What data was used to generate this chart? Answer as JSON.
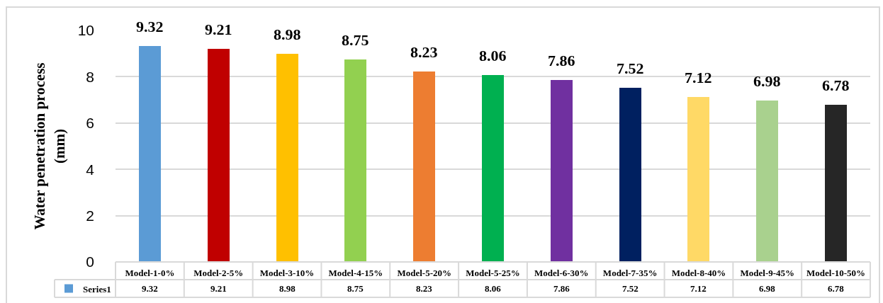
{
  "chart_data": {
    "type": "bar",
    "ylabel": "Water penetration process (mm)",
    "categories": [
      "Model-1-0%",
      "Model-2-5%",
      "Model-3-10%",
      "Model-4-15%",
      "Model-5-20%",
      "Model-5-25%",
      "Model-6-30%",
      "Model-7-35%",
      "Model-8-40%",
      "Model-9-45%",
      "Model-10-50%"
    ],
    "series": [
      {
        "name": "Series1",
        "colors": [
          "#5b9bd5",
          "#c00000",
          "#ffc000",
          "#92d050",
          "#ed7d31",
          "#00b050",
          "#7030a0",
          "#002060",
          "#ffd966",
          "#a9d18e",
          "#262626"
        ],
        "values": [
          9.32,
          9.21,
          8.98,
          8.75,
          8.23,
          8.06,
          7.86,
          7.52,
          7.12,
          6.98,
          6.78
        ]
      }
    ],
    "annotations": [
      {
        "text": "9.32",
        "x": "Model-1-0%",
        "y": 9.32
      },
      {
        "text": "9.21",
        "x": "Model-2-5%",
        "y": 9.21
      },
      {
        "text": "8.98",
        "x": "Model-3-10%",
        "y": 8.98
      },
      {
        "text": "8.75",
        "x": "Model-4-15%",
        "y": 8.75
      },
      {
        "text": "8.23",
        "x": "Model-5-20%",
        "y": 8.23
      },
      {
        "text": "8.06",
        "x": "Model-5-25%",
        "y": 8.06
      },
      {
        "text": "7.86",
        "x": "Model-6-30%",
        "y": 7.86
      },
      {
        "text": "7.52",
        "x": "Model-7-35%",
        "y": 7.52
      },
      {
        "text": "7.12",
        "x": "Model-8-40%",
        "y": 7.12
      },
      {
        "text": "6.98",
        "x": "Model-9-45%",
        "y": 6.98
      },
      {
        "text": "6.78",
        "x": "Model-10-50%",
        "y": 6.78
      }
    ],
    "ylim": [
      0,
      10
    ],
    "yticks": [
      0,
      2,
      4,
      6,
      8,
      10
    ],
    "grid": "y",
    "legend": "bottom left",
    "data_labels": true
  }
}
